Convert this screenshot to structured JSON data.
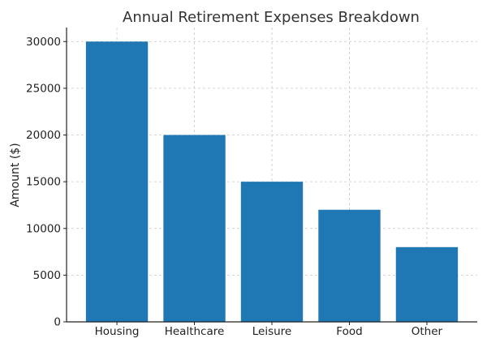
{
  "chart_data": {
    "type": "bar",
    "title": "Annual Retirement Expenses Breakdown",
    "xlabel": "",
    "ylabel": "Amount ($)",
    "categories": [
      "Housing",
      "Healthcare",
      "Leisure",
      "Food",
      "Other"
    ],
    "values": [
      30000,
      20000,
      15000,
      12000,
      8000
    ],
    "ylim": [
      0,
      31500
    ],
    "yticks": [
      0,
      5000,
      10000,
      15000,
      20000,
      25000,
      30000
    ],
    "grid": true,
    "bar_color": "#1f77b4"
  }
}
